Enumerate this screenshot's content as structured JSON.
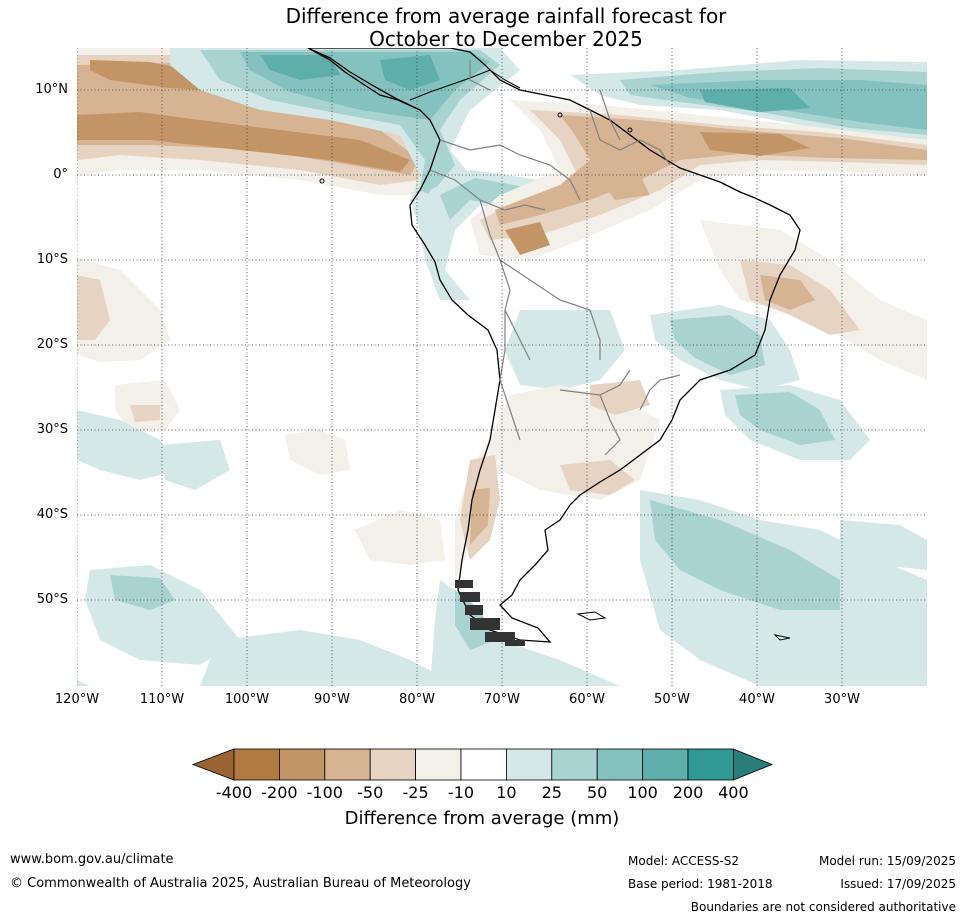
{
  "title": {
    "line1": "Difference from average rainfall forecast for",
    "line2": "October to December 2025"
  },
  "map": {
    "region": "South America",
    "projection": "lat-lon",
    "lat_range": [
      -60,
      15
    ],
    "lon_range": [
      -120,
      -20
    ],
    "gridlines": "dotted",
    "lat_labels": [
      "10°N",
      "0°",
      "10°S",
      "20°S",
      "30°S",
      "40°S",
      "50°S"
    ],
    "lon_labels": [
      "120°W",
      "110°W",
      "100°W",
      "90°W",
      "80°W",
      "70°W",
      "60°W",
      "50°W",
      "40°W",
      "30°W"
    ],
    "coastline_color": "#000000",
    "border_color": "#808080"
  },
  "colorbar": {
    "title": "Difference from average (mm)",
    "tick_labels": [
      "-400",
      "-200",
      "-100",
      "-50",
      "-25",
      "-10",
      "10",
      "25",
      "50",
      "100",
      "200",
      "400"
    ],
    "colors": [
      "#9a6432",
      "#b07a40",
      "#c39465",
      "#d5b393",
      "#e6d3c2",
      "#f3efe9",
      "#ffffff",
      "#d4e9e7",
      "#a8d3d1",
      "#84c2c0",
      "#5eaeab",
      "#2e9995",
      "#2a7d78"
    ]
  },
  "footer": {
    "url": "www.bom.gov.au/climate",
    "copyright": "© Commonwealth of Australia 2025, Australian Bureau of Meteorology",
    "model": "Model: ACCESS-S2",
    "base_period": "Base period: 1981-2018",
    "model_run": "Model run: 15/09/2025",
    "issued": "Issued: 17/09/2025",
    "disclaimer": "Boundaries are not considered authoritative"
  }
}
